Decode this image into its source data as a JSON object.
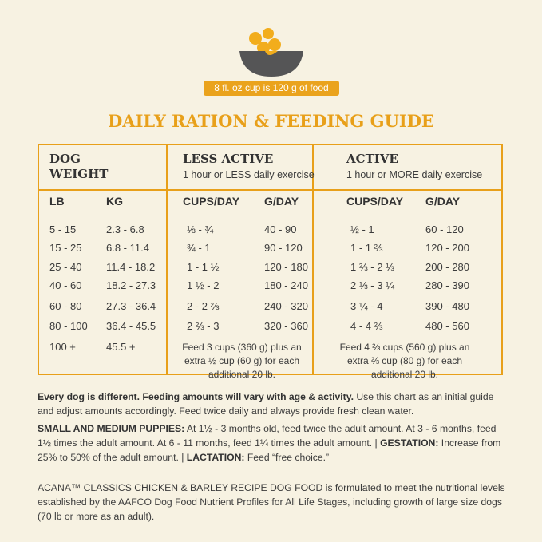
{
  "badge": "8 fl. oz cup is 120 g of food",
  "title": "DAILY RATION & FEEDING GUIDE",
  "table": {
    "groups": [
      {
        "title": "DOG WEIGHT"
      },
      {
        "title": "LESS ACTIVE",
        "subtitle": "1 hour or LESS daily exercise"
      },
      {
        "title": "ACTIVE",
        "subtitle": "1 hour or MORE daily exercise"
      }
    ],
    "columns": [
      "LB",
      "KG",
      "CUPS/DAY",
      "G/DAY",
      "CUPS/DAY",
      "G/DAY"
    ],
    "rows": [
      [
        "5 - 15",
        "2.3 - 6.8",
        "⅓ - ¾",
        "40 - 90",
        "½ - 1",
        "60 - 120"
      ],
      [
        "15 - 25",
        "6.8 - 11.4",
        "¾ - 1",
        "90 - 120",
        "1 - 1 ⅔",
        "120 - 200"
      ],
      [
        "25 - 40",
        "11.4 - 18.2",
        "1 - 1 ½",
        "120 - 180",
        "1 ⅔ - 2 ⅓",
        "200 - 280"
      ],
      [
        "40 - 60",
        "18.2 - 27.3",
        "1 ½ - 2",
        "180 - 240",
        "2 ⅓ - 3 ¼",
        "280 - 390"
      ],
      [
        "60 - 80",
        "27.3 - 36.4",
        "2 - 2 ⅔",
        "240 - 320",
        "3 ¼ - 4",
        "390 - 480"
      ],
      [
        "80 - 100",
        "36.4 - 45.5",
        "2 ⅔ - 3",
        "320 - 360",
        "4 - 4 ⅔",
        "480 - 560"
      ]
    ],
    "last_row": [
      "100 +",
      "45.5 +"
    ],
    "notes": [
      "Feed 3 cups (360 g) plus an extra ½ cup (60 g) for each additional 20 lb.",
      "Feed 4 ⅔ cups (560 g) plus an extra ⅔ cup (80 g) for each additional 20 lb."
    ]
  },
  "footer": [
    [
      {
        "text": "Every dog is different. Feeding amounts will vary with age & activity.",
        "bold": true
      },
      {
        "text": " Use this chart as an initial guide and adjust amounts accordingly. Feed twice daily and always provide fresh clean water.",
        "bold": false
      }
    ],
    [
      {
        "text": "SMALL AND MEDIUM PUPPIES:",
        "bold": true
      },
      {
        "text": " At 1½ - 3 months old, feed twice the adult amount. At 3 - 6 months, feed 1½ times the adult amount. At 6 - 11 months, feed 1¼ times the adult amount.  |  ",
        "bold": false
      },
      {
        "text": "GESTATION:",
        "bold": true
      },
      {
        "text": " Increase from 25% to 50% of the adult amount.  |  ",
        "bold": false
      },
      {
        "text": "LACTATION:",
        "bold": true
      },
      {
        "text": " Feed “free choice.”",
        "bold": false
      }
    ],
    [
      {
        "text": "ACANA™ CLASSICS CHICKEN & BARLEY RECIPE DOG FOOD is formulated to meet the nutritional levels established by the AAFCO Dog Food Nutrient Profiles for All Life Stages, including growth of large size dogs (70 lb or more as an adult).",
        "bold": false
      }
    ]
  ]
}
